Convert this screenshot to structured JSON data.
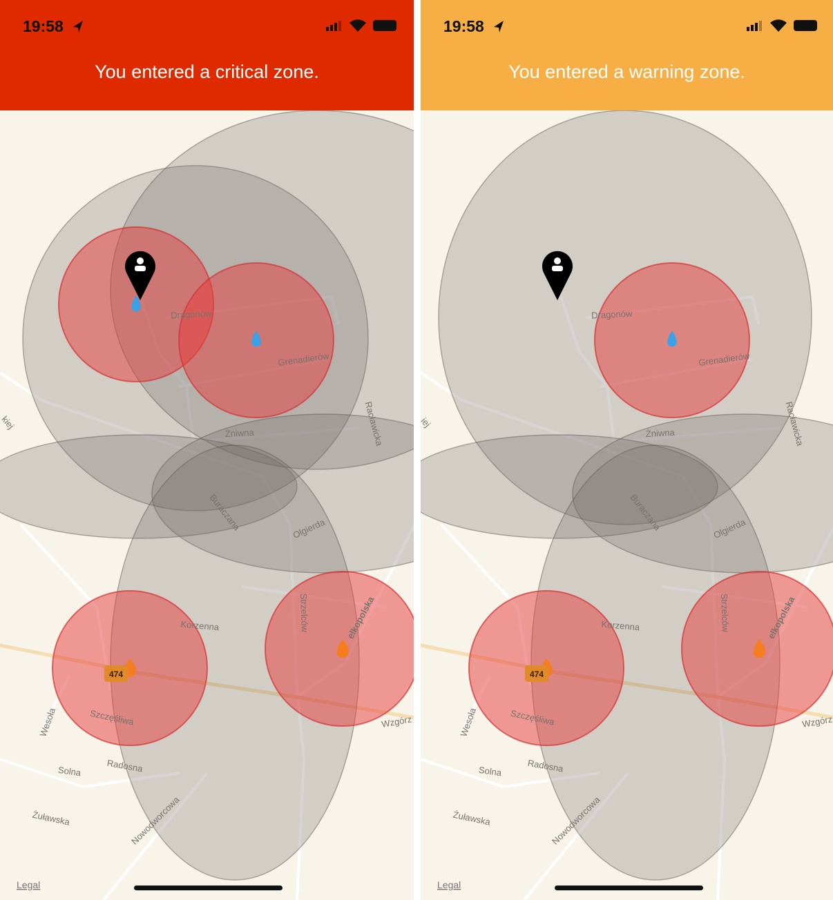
{
  "screens": [
    {
      "time": "19:58",
      "banner": "You entered a critical zone.",
      "banner_color": "#df2a00",
      "labels": [
        "Dragonów",
        "Grenadierów",
        "Racławicka",
        "Żniwna",
        "Buraczana",
        "Olgierda",
        "Strzelców",
        "Korzenna",
        "elkopolska",
        "Szczęśliwa",
        "Wesoła",
        "Solna",
        "Radosna",
        "Żuławska",
        "Nowodworcowa",
        "Wzgórz",
        "kiej",
        "474"
      ],
      "legal": "Legal"
    },
    {
      "time": "19:58",
      "banner": "You entered a warning zone.",
      "banner_color": "#f7ae45",
      "labels": [
        "Dragonów",
        "Grenadierów",
        "Racławicka",
        "Żniwna",
        "Buraczana",
        "Olgierda",
        "Strzelców",
        "Korzenna",
        "elkopolska",
        "Szczęśliwa",
        "Wesoła",
        "Solna",
        "Radosna",
        "Żuławska",
        "Nowodworcowa",
        "Wzgórz",
        "iej",
        "474"
      ],
      "legal": "Legal"
    }
  ]
}
